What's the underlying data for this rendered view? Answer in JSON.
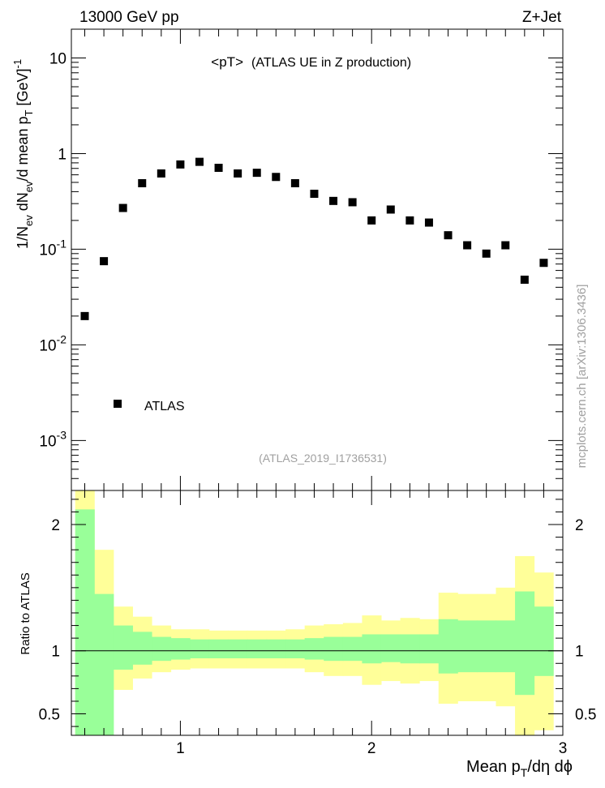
{
  "header": {
    "energy": "13000 GeV pp",
    "process": "Z+Jet",
    "title": "<pT>",
    "subtitle": "(ATLAS UE in Z production)",
    "analysis": "(ATLAS_2019_I1736531)",
    "side_label": "mcplots.cern.ch [arXiv:1306.3436]"
  },
  "legend": {
    "label": "ATLAS"
  },
  "colors": {
    "band_inner": "#99ff99",
    "band_outer": "#ffff99",
    "marker": "#000000"
  },
  "chart_data": [
    {
      "type": "scatter",
      "title": "<pT>",
      "subtitle": "(ATLAS UE in Z production)",
      "ylabel": "1/N_ev dN_ev/d mean p_T [GeV]^-1",
      "xlabel": "Mean p_T/dη dϕ",
      "yscale": "log",
      "xlim": [
        0.43,
        3.0
      ],
      "ylim": [
        0.0003,
        20
      ],
      "x_ticks": [
        "1",
        "2",
        "3"
      ],
      "y_ticks": [
        "10^-3",
        "10^-2",
        "10^-1",
        "1",
        "10"
      ],
      "legend_position": "bottom-left",
      "series": [
        {
          "name": "ATLAS",
          "x": [
            0.5,
            0.6,
            0.7,
            0.8,
            0.9,
            1.0,
            1.1,
            1.2,
            1.3,
            1.4,
            1.5,
            1.6,
            1.7,
            1.8,
            1.9,
            2.0,
            2.1,
            2.2,
            2.3,
            2.4,
            2.5,
            2.6,
            2.7,
            2.8,
            2.9
          ],
          "y": [
            0.02,
            0.075,
            0.27,
            0.49,
            0.62,
            0.77,
            0.82,
            0.71,
            0.62,
            0.63,
            0.57,
            0.49,
            0.38,
            0.32,
            0.31,
            0.2,
            0.26,
            0.2,
            0.19,
            0.14,
            0.11,
            0.09,
            0.11,
            0.048,
            0.072
          ]
        }
      ]
    },
    {
      "type": "area",
      "ylabel": "Ratio to ATLAS",
      "xlabel": "Mean p_T/dη dϕ",
      "xlim": [
        0.43,
        3.0
      ],
      "ylim": [
        0.33,
        2.27
      ],
      "y_ticks": [
        "0.5",
        "1",
        "2"
      ],
      "reference_line": 1,
      "bin_edges": [
        0.45,
        0.55,
        0.65,
        0.75,
        0.85,
        0.95,
        1.05,
        1.15,
        1.25,
        1.35,
        1.45,
        1.55,
        1.65,
        1.75,
        1.85,
        1.95,
        2.05,
        2.15,
        2.25,
        2.35,
        2.45,
        2.55,
        2.65,
        2.75,
        2.85,
        2.95
      ],
      "inner_band": {
        "low": [
          0.33,
          0.33,
          0.85,
          0.89,
          0.92,
          0.93,
          0.94,
          0.94,
          0.94,
          0.94,
          0.94,
          0.94,
          0.93,
          0.92,
          0.92,
          0.9,
          0.91,
          0.9,
          0.9,
          0.82,
          0.83,
          0.83,
          0.83,
          0.65,
          0.8
        ],
        "high": [
          2.12,
          1.45,
          1.2,
          1.15,
          1.11,
          1.1,
          1.09,
          1.09,
          1.09,
          1.09,
          1.09,
          1.09,
          1.1,
          1.11,
          1.11,
          1.13,
          1.13,
          1.13,
          1.13,
          1.25,
          1.24,
          1.24,
          1.24,
          1.47,
          1.35
        ]
      },
      "outer_band": {
        "low": [
          0.33,
          0.62,
          0.69,
          0.78,
          0.83,
          0.85,
          0.86,
          0.86,
          0.86,
          0.86,
          0.86,
          0.86,
          0.83,
          0.8,
          0.8,
          0.73,
          0.76,
          0.74,
          0.76,
          0.58,
          0.6,
          0.6,
          0.56,
          0.33,
          0.37
        ],
        "high": [
          2.27,
          1.8,
          1.35,
          1.27,
          1.2,
          1.17,
          1.17,
          1.16,
          1.16,
          1.16,
          1.16,
          1.17,
          1.2,
          1.21,
          1.22,
          1.28,
          1.24,
          1.26,
          1.25,
          1.46,
          1.45,
          1.45,
          1.5,
          1.75,
          1.62
        ]
      }
    }
  ]
}
